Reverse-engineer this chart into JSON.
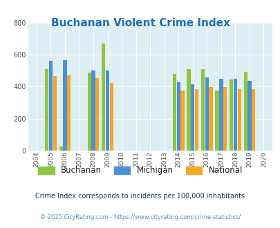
{
  "title": "Buchanan Violent Crime Index",
  "years": [
    2004,
    2005,
    2006,
    2007,
    2008,
    2009,
    2010,
    2011,
    2012,
    2013,
    2014,
    2015,
    2016,
    2017,
    2018,
    2019,
    2020
  ],
  "buchanan": [
    null,
    510,
    25,
    null,
    490,
    670,
    null,
    null,
    null,
    null,
    480,
    510,
    510,
    375,
    447,
    492,
    null
  ],
  "michigan": [
    null,
    560,
    565,
    null,
    500,
    503,
    null,
    null,
    null,
    null,
    428,
    415,
    458,
    450,
    450,
    438,
    null
  ],
  "national": [
    null,
    465,
    472,
    null,
    455,
    425,
    null,
    null,
    null,
    null,
    376,
    383,
    398,
    398,
    383,
    383,
    null
  ],
  "bar_colors": {
    "buchanan": "#8dc63f",
    "michigan": "#4a90d9",
    "national": "#f5a623"
  },
  "ylim": [
    0,
    800
  ],
  "yticks": [
    0,
    200,
    400,
    600,
    800
  ],
  "plot_bg": "#deeef5",
  "title_color": "#1a6fbb",
  "legend_labels": [
    "Buchanan",
    "Michigan",
    "National"
  ],
  "footnote1": "Crime Index corresponds to incidents per 100,000 inhabitants",
  "footnote2": "© 2025 CityRating.com - https://www.cityrating.com/crime-statistics/",
  "bar_width": 0.28,
  "xlim_min": 2003.4,
  "xlim_max": 2020.6
}
